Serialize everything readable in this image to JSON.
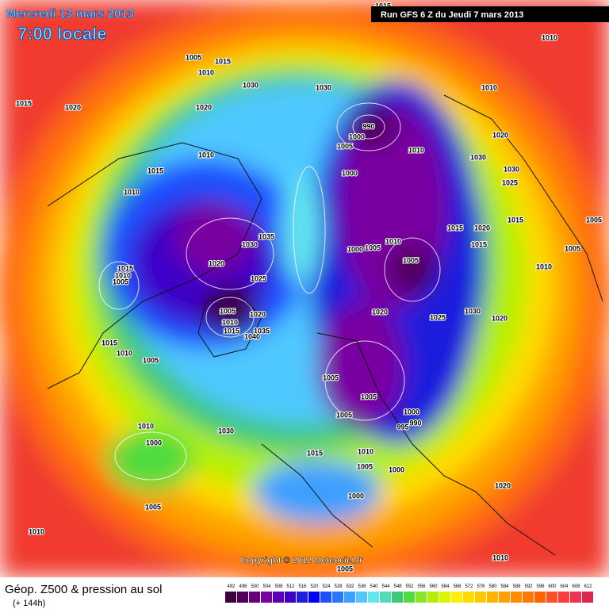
{
  "header": {
    "date": "Mercredi 13 mars 2013",
    "time": "7:00 locale",
    "run": "Run GFS 6 Z du Jeudi 7 mars 2013"
  },
  "footer": {
    "title": "Géop. Z500 & pression au sol",
    "subtitle": "(+ 144h)",
    "copyright": "Copyright © 2012 Meteociel.fr"
  },
  "legend": {
    "values": [
      492,
      496,
      500,
      504,
      508,
      512,
      516,
      520,
      524,
      528,
      532,
      536,
      540,
      544,
      548,
      552,
      556,
      560,
      564,
      568,
      572,
      576,
      580,
      584,
      588,
      592,
      596,
      600,
      604,
      608,
      612
    ],
    "colors": [
      "#3c003c",
      "#50005a",
      "#640078",
      "#7800a0",
      "#5a00b4",
      "#3c00c8",
      "#1e1edc",
      "#0000ff",
      "#1e50ff",
      "#2878ff",
      "#3ca0ff",
      "#50c8ff",
      "#64e6f0",
      "#50dcb4",
      "#3cc878",
      "#50dc3c",
      "#8ce628",
      "#b4f000",
      "#dcf500",
      "#fff000",
      "#ffdc00",
      "#ffc800",
      "#ffb400",
      "#ffa000",
      "#ff8c00",
      "#ff7800",
      "#ff6400",
      "#ff5028",
      "#ff3c3c",
      "#f03250",
      "#dc2850"
    ]
  },
  "pressure_labels": [
    1015,
    1010,
    1005,
    1015,
    1010,
    1030,
    1030,
    1010,
    1015,
    1020,
    1020,
    990,
    1000,
    1005,
    1010,
    1020,
    1030,
    1010,
    1015,
    1030,
    1000,
    1025,
    1010,
    1015,
    1005,
    1015,
    1020,
    1035,
    1030,
    1010,
    1005,
    1000,
    1015,
    1005,
    1005,
    1010,
    1020,
    1015,
    1010,
    1005,
    1025,
    1030,
    1020,
    1025,
    1020,
    1005,
    1010,
    1015,
    1020,
    1035,
    1040,
    1015,
    1010,
    1005,
    1005,
    1005,
    1005,
    1000,
    990,
    995,
    1010,
    1000,
    1030,
    1015,
    1010,
    1005,
    1000,
    1000,
    1020,
    1005,
    1010,
    1010,
    1005
  ]
}
